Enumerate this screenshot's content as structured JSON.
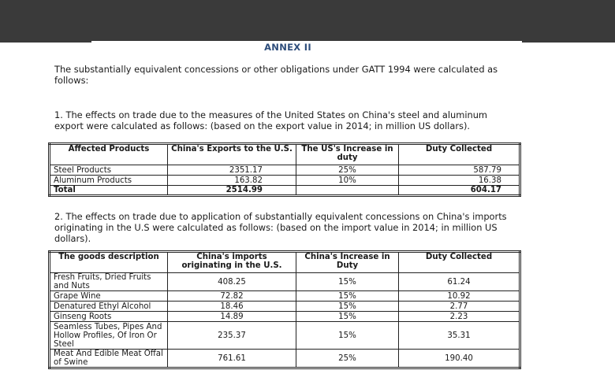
{
  "annex_title": "ANNEX II",
  "intro": "The substantially equivalent concessions or other obligations under GATT 1994 were calculated as follows:",
  "section1": {
    "text": "1. The effects on trade due to the measures of the United States on China's steel and aluminum export were calculated as follows: (based on the export value in 2014; in million US dollars).",
    "headers": [
      "Affected Products",
      "China's Exports to the U.S.",
      "The US's Increase in duty",
      "Duty Collected"
    ],
    "rows": [
      [
        "Steel Products",
        "2351.17",
        "25%",
        "587.79"
      ],
      [
        "Aluminum Products",
        "163.82",
        "10%",
        "16.38"
      ]
    ],
    "total": [
      "Total",
      "2514.99",
      "",
      "604.17"
    ]
  },
  "section2": {
    "text": "2. The effects on trade due to application of substantially equivalent concessions on China's imports originating in the U.S were calculated as follows: (based on the import value in 2014; in million US dollars).",
    "headers": [
      "The goods description",
      "China's imports originating in the U.S.",
      "China's Increase in Duty",
      "Duty Collected"
    ],
    "rows": [
      [
        "Fresh Fruits, Dried Fruits and Nuts",
        "408.25",
        "15%",
        "61.24"
      ],
      [
        "Grape Wine",
        "72.82",
        "15%",
        "10.92"
      ],
      [
        "Denatured Ethyl Alcohol",
        "18.46",
        "15%",
        "2.77"
      ],
      [
        "Ginseng Roots",
        "14.89",
        "15%",
        "2.23"
      ],
      [
        "Seamless Tubes, Pipes And Hollow Profiles, Of Iron Or Steel",
        "235.37",
        "15%",
        "35.31"
      ],
      [
        "Meat And Edible Meat Offal of Swine",
        "761.61",
        "25%",
        "190.40"
      ]
    ]
  }
}
